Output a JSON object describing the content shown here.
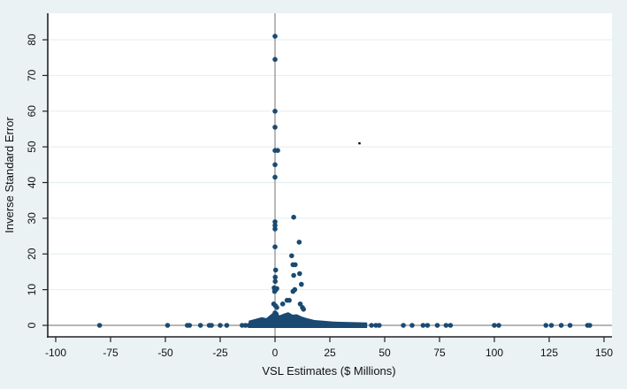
{
  "chart_data": {
    "type": "scatter",
    "title": "",
    "xlabel": "VSL Estimates ($ Millions)",
    "ylabel": "Inverse Standard Error",
    "xlim": [
      -104,
      154
    ],
    "ylim": [
      -3,
      88
    ],
    "x_ticks": [
      -100,
      -75,
      -50,
      -25,
      0,
      25,
      50,
      75,
      100,
      125,
      150
    ],
    "y_ticks": [
      0,
      10,
      20,
      30,
      40,
      50,
      60,
      70,
      80
    ],
    "grid": "horizontal",
    "reference_lines": {
      "x": 0,
      "y": 0
    },
    "marker_color": "#1a4a72",
    "legend": null,
    "annotations": [
      {
        "type": "dot",
        "x": 38.5,
        "y": 51,
        "color": "#000000"
      }
    ],
    "points": [
      {
        "x": 0,
        "y": 81
      },
      {
        "x": 0,
        "y": 74.5
      },
      {
        "x": 0,
        "y": 60
      },
      {
        "x": 0,
        "y": 55.5
      },
      {
        "x": 0,
        "y": 49
      },
      {
        "x": 1.2,
        "y": 49
      },
      {
        "x": 0,
        "y": 45
      },
      {
        "x": 0,
        "y": 41.5
      },
      {
        "x": 0,
        "y": 29
      },
      {
        "x": 0,
        "y": 28
      },
      {
        "x": 0,
        "y": 27
      },
      {
        "x": 0,
        "y": 22
      },
      {
        "x": 0.3,
        "y": 15.5
      },
      {
        "x": 0.1,
        "y": 13.5
      },
      {
        "x": 0.1,
        "y": 12.3
      },
      {
        "x": -0.4,
        "y": 10.5
      },
      {
        "x": 0.4,
        "y": 10
      },
      {
        "x": 0.8,
        "y": 10.3
      },
      {
        "x": -0.2,
        "y": 9.5
      },
      {
        "x": -0.6,
        "y": 6
      },
      {
        "x": 0.2,
        "y": 5.5
      },
      {
        "x": 0.8,
        "y": 5
      },
      {
        "x": 0,
        "y": 3.5
      },
      {
        "x": 0.5,
        "y": 3.2
      },
      {
        "x": 8.5,
        "y": 30.3
      },
      {
        "x": 11,
        "y": 23.3
      },
      {
        "x": 7.6,
        "y": 19.5
      },
      {
        "x": 8.2,
        "y": 17
      },
      {
        "x": 9.2,
        "y": 17
      },
      {
        "x": 8.5,
        "y": 14
      },
      {
        "x": 11.2,
        "y": 14.5
      },
      {
        "x": 12,
        "y": 11.5
      },
      {
        "x": 8.2,
        "y": 9.5
      },
      {
        "x": 9,
        "y": 10
      },
      {
        "x": 5.5,
        "y": 7
      },
      {
        "x": 3.5,
        "y": 6
      },
      {
        "x": 6.5,
        "y": 7
      },
      {
        "x": 11.5,
        "y": 6
      },
      {
        "x": 12.5,
        "y": 5
      },
      {
        "x": 13,
        "y": 4.5
      },
      {
        "x": -80,
        "y": 0
      },
      {
        "x": -49,
        "y": 0
      },
      {
        "x": -40,
        "y": 0
      },
      {
        "x": -39,
        "y": 0
      },
      {
        "x": -34,
        "y": 0
      },
      {
        "x": -30,
        "y": 0
      },
      {
        "x": -29,
        "y": 0
      },
      {
        "x": -25,
        "y": 0
      },
      {
        "x": -22,
        "y": 0
      },
      {
        "x": -15,
        "y": 0
      },
      {
        "x": -13.5,
        "y": 0
      },
      {
        "x": -12,
        "y": 0
      },
      {
        "x": 44,
        "y": 0
      },
      {
        "x": 46,
        "y": 0
      },
      {
        "x": 47.5,
        "y": 0
      },
      {
        "x": 58.5,
        "y": 0
      },
      {
        "x": 62.5,
        "y": 0
      },
      {
        "x": 67.5,
        "y": 0
      },
      {
        "x": 69.5,
        "y": 0
      },
      {
        "x": 74,
        "y": 0
      },
      {
        "x": 78,
        "y": 0
      },
      {
        "x": 80,
        "y": 0
      },
      {
        "x": 100,
        "y": 0
      },
      {
        "x": 102,
        "y": 0
      },
      {
        "x": 123.5,
        "y": 0
      },
      {
        "x": 126,
        "y": 0
      },
      {
        "x": 130.5,
        "y": 0
      },
      {
        "x": 134.5,
        "y": 0
      },
      {
        "x": 142.5,
        "y": 0
      },
      {
        "x": 143.5,
        "y": 0
      }
    ],
    "dense_band": {
      "description": "dense cluster of hundreds of points with low inverse SE",
      "x_range": [
        -12,
        42
      ],
      "y_profile": [
        {
          "x": -12,
          "y": 0.8
        },
        {
          "x": -9,
          "y": 1.3
        },
        {
          "x": -6,
          "y": 1.8
        },
        {
          "x": -4,
          "y": 1.5
        },
        {
          "x": -2,
          "y": 2.5
        },
        {
          "x": 0,
          "y": 3.5
        },
        {
          "x": 2,
          "y": 2.3
        },
        {
          "x": 4,
          "y": 2.8
        },
        {
          "x": 6,
          "y": 3.2
        },
        {
          "x": 8,
          "y": 2.5
        },
        {
          "x": 10,
          "y": 2.6
        },
        {
          "x": 12,
          "y": 2.0
        },
        {
          "x": 14,
          "y": 1.6
        },
        {
          "x": 16,
          "y": 1.3
        },
        {
          "x": 18,
          "y": 1.0
        },
        {
          "x": 22,
          "y": 0.8
        },
        {
          "x": 26,
          "y": 0.6
        },
        {
          "x": 30,
          "y": 0.5
        },
        {
          "x": 36,
          "y": 0.4
        },
        {
          "x": 42,
          "y": 0.3
        }
      ]
    }
  }
}
